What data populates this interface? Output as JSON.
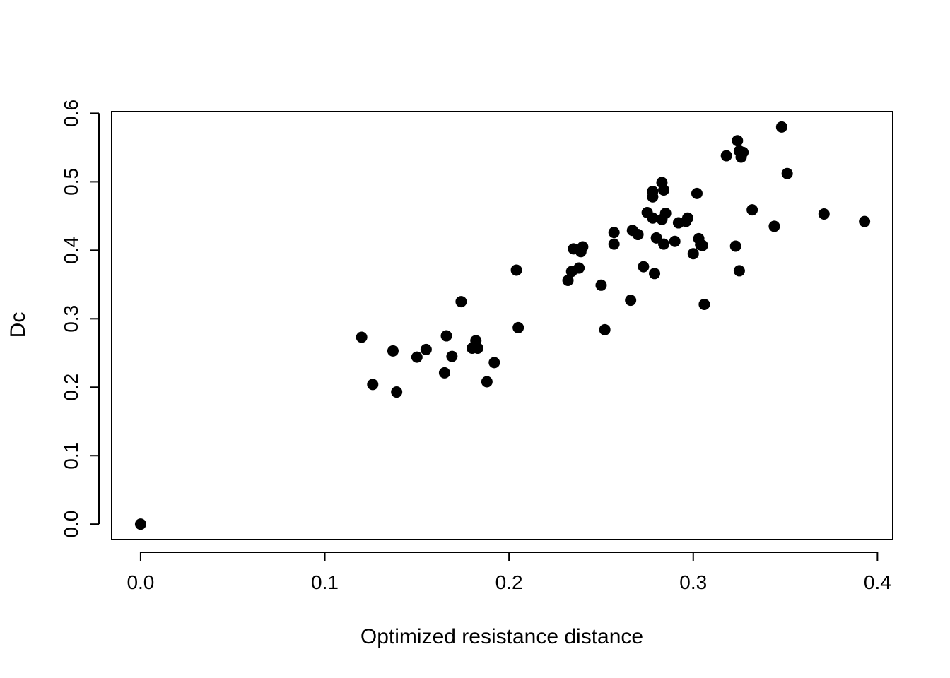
{
  "chart_data": {
    "type": "scatter",
    "title": "",
    "xlabel": "Optimized resistance distance",
    "ylabel": "Dc",
    "xlim": [
      -0.0157,
      0.4083
    ],
    "ylim": [
      -0.0225,
      0.6025
    ],
    "x_ticks": [
      0.0,
      0.1,
      0.2,
      0.3,
      0.4
    ],
    "x_tick_labels": [
      "0.0",
      "0.1",
      "0.2",
      "0.3",
      "0.4"
    ],
    "y_ticks": [
      0.0,
      0.1,
      0.2,
      0.3,
      0.4,
      0.5,
      0.6
    ],
    "y_tick_labels": [
      "0.0",
      "0.1",
      "0.2",
      "0.3",
      "0.4",
      "0.5",
      "0.6"
    ],
    "grid": false,
    "legend": "none",
    "marker_color": "#000000",
    "points": [
      [
        0.0,
        0.0
      ],
      [
        0.12,
        0.273
      ],
      [
        0.126,
        0.204
      ],
      [
        0.137,
        0.253
      ],
      [
        0.139,
        0.193
      ],
      [
        0.15,
        0.244
      ],
      [
        0.155,
        0.255
      ],
      [
        0.165,
        0.221
      ],
      [
        0.166,
        0.275
      ],
      [
        0.169,
        0.245
      ],
      [
        0.174,
        0.325
      ],
      [
        0.18,
        0.257
      ],
      [
        0.182,
        0.268
      ],
      [
        0.183,
        0.257
      ],
      [
        0.188,
        0.208
      ],
      [
        0.192,
        0.236
      ],
      [
        0.204,
        0.371
      ],
      [
        0.205,
        0.287
      ],
      [
        0.232,
        0.356
      ],
      [
        0.234,
        0.369
      ],
      [
        0.235,
        0.402
      ],
      [
        0.238,
        0.374
      ],
      [
        0.239,
        0.398
      ],
      [
        0.24,
        0.405
      ],
      [
        0.25,
        0.349
      ],
      [
        0.252,
        0.284
      ],
      [
        0.257,
        0.426
      ],
      [
        0.257,
        0.409
      ],
      [
        0.266,
        0.327
      ],
      [
        0.267,
        0.429
      ],
      [
        0.27,
        0.423
      ],
      [
        0.273,
        0.376
      ],
      [
        0.275,
        0.455
      ],
      [
        0.278,
        0.486
      ],
      [
        0.278,
        0.478
      ],
      [
        0.278,
        0.447
      ],
      [
        0.279,
        0.366
      ],
      [
        0.28,
        0.418
      ],
      [
        0.283,
        0.499
      ],
      [
        0.283,
        0.445
      ],
      [
        0.284,
        0.488
      ],
      [
        0.284,
        0.409
      ],
      [
        0.285,
        0.454
      ],
      [
        0.29,
        0.413
      ],
      [
        0.292,
        0.44
      ],
      [
        0.296,
        0.442
      ],
      [
        0.297,
        0.447
      ],
      [
        0.3,
        0.395
      ],
      [
        0.302,
        0.483
      ],
      [
        0.303,
        0.417
      ],
      [
        0.304,
        0.408
      ],
      [
        0.305,
        0.407
      ],
      [
        0.306,
        0.321
      ],
      [
        0.318,
        0.538
      ],
      [
        0.323,
        0.406
      ],
      [
        0.324,
        0.56
      ],
      [
        0.325,
        0.545
      ],
      [
        0.325,
        0.37
      ],
      [
        0.326,
        0.536
      ],
      [
        0.327,
        0.543
      ],
      [
        0.332,
        0.459
      ],
      [
        0.344,
        0.435
      ],
      [
        0.348,
        0.58
      ],
      [
        0.351,
        0.512
      ],
      [
        0.371,
        0.453
      ],
      [
        0.393,
        0.442
      ]
    ]
  }
}
